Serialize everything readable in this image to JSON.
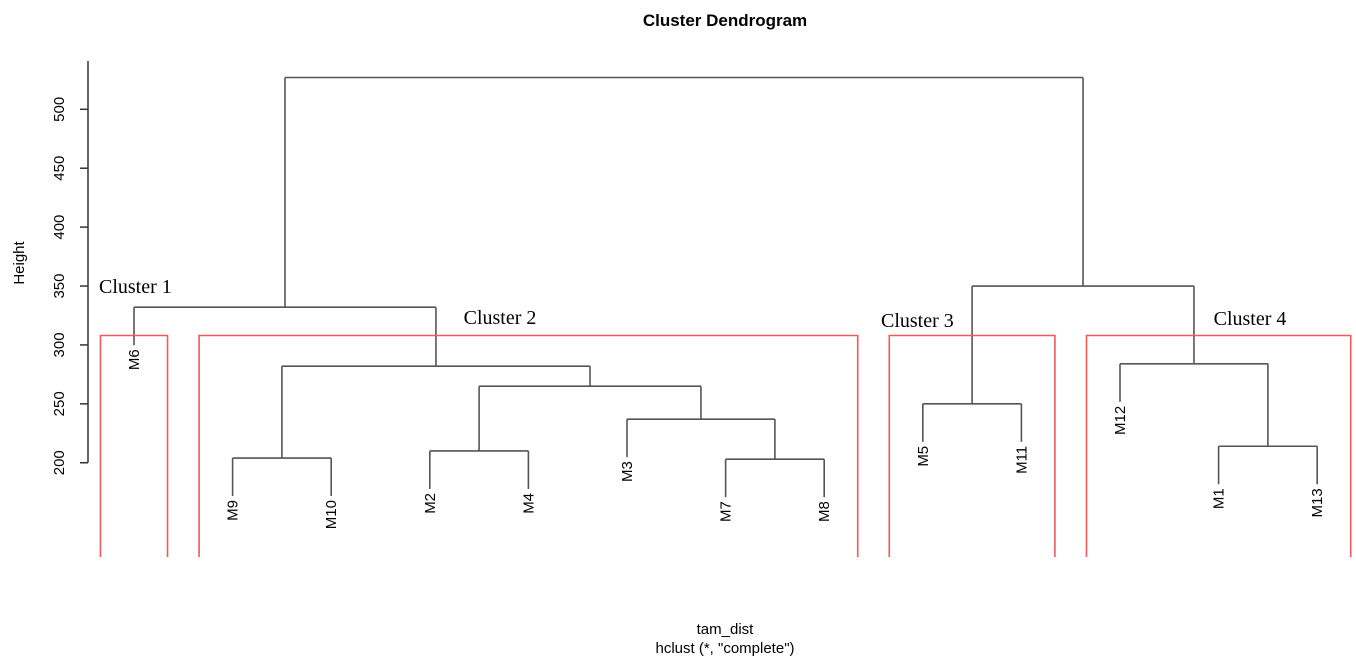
{
  "chart_data": {
    "type": "dendrogram",
    "title": "Cluster Dendrogram",
    "xlabel": "tam_dist",
    "subtitle": "hclust (*, \"complete\")",
    "ylabel": "Height",
    "ylim": [
      120,
      541
    ],
    "yticks": [
      200,
      250,
      300,
      350,
      400,
      450,
      500
    ],
    "color": "#555555",
    "cluster_color": "#f05a5a",
    "cut": 308,
    "tree": {
      "height": 527,
      "children": [
        {
          "height": 332,
          "children": [
            {
              "label": "M6"
            },
            {
              "height": 282,
              "children": [
                {
                  "height": 204,
                  "children": [
                    {
                      "label": "M9"
                    },
                    {
                      "label": "M10"
                    }
                  ]
                },
                {
                  "height": 265,
                  "children": [
                    {
                      "height": 210,
                      "children": [
                        {
                          "label": "M2"
                        },
                        {
                          "label": "M4"
                        }
                      ]
                    },
                    {
                      "height": 237,
                      "children": [
                        {
                          "label": "M3"
                        },
                        {
                          "height": 203,
                          "children": [
                            {
                              "label": "M7"
                            },
                            {
                              "label": "M8"
                            }
                          ]
                        }
                      ]
                    }
                  ]
                }
              ]
            }
          ]
        },
        {
          "height": 350,
          "children": [
            {
              "height": 250,
              "children": [
                {
                  "label": "M5"
                },
                {
                  "label": "M11"
                }
              ]
            },
            {
              "height": 284,
              "children": [
                {
                  "label": "M12"
                },
                {
                  "height": 214,
                  "children": [
                    {
                      "label": "M1"
                    },
                    {
                      "label": "M13"
                    }
                  ]
                }
              ]
            }
          ]
        }
      ]
    },
    "clusters": [
      {
        "label": "Cluster 1",
        "members": [
          "M6"
        ]
      },
      {
        "label": "Cluster 2",
        "members": [
          "M9",
          "M10",
          "M2",
          "M4",
          "M3",
          "M7",
          "M8"
        ]
      },
      {
        "label": "Cluster 3",
        "members": [
          "M5",
          "M11"
        ]
      },
      {
        "label": "Cluster 4",
        "members": [
          "M12",
          "M1",
          "M13"
        ]
      }
    ]
  }
}
